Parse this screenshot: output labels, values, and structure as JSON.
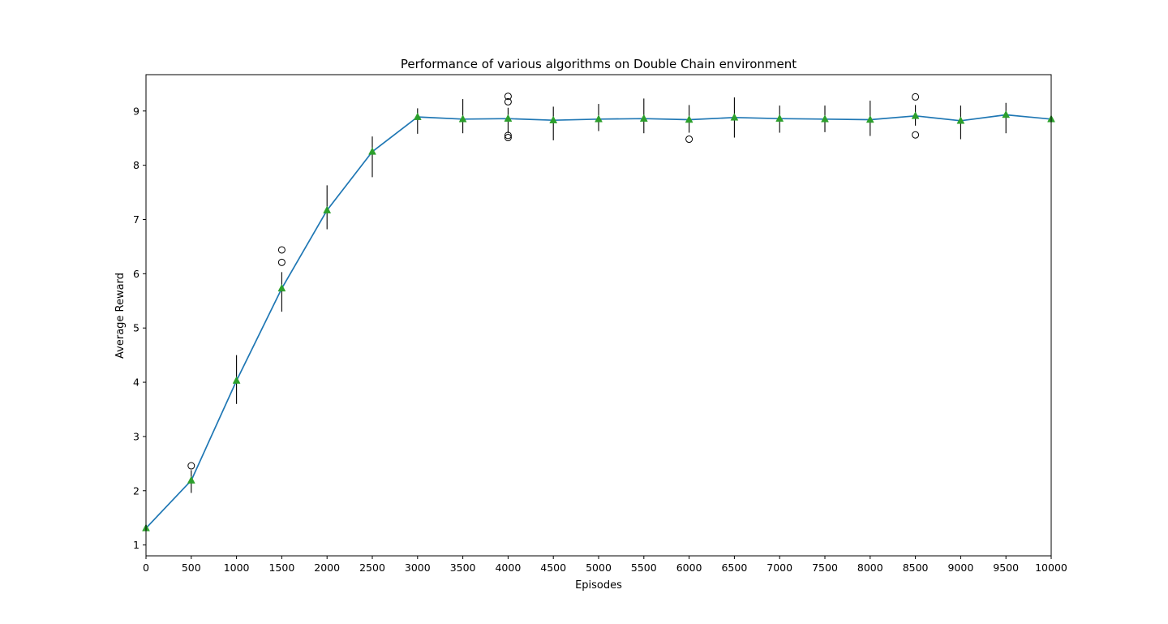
{
  "chart_data": {
    "type": "line",
    "title": "Performance of various algorithms on Double Chain environment",
    "xlabel": "Episodes",
    "ylabel": "Average Reward",
    "xlim": [
      0,
      10000
    ],
    "ylim": [
      0.8,
      9.67
    ],
    "xticks": [
      0,
      500,
      1000,
      1500,
      2000,
      2500,
      3000,
      3500,
      4000,
      4500,
      5000,
      5500,
      6000,
      6500,
      7000,
      7500,
      8000,
      8500,
      9000,
      9500,
      10000
    ],
    "yticks": [
      1,
      2,
      3,
      4,
      5,
      6,
      7,
      8,
      9
    ],
    "grid": false,
    "legend": "none",
    "series": [
      {
        "x": [
          0,
          500,
          1000,
          1500,
          2000,
          2500,
          3000,
          3500,
          4000,
          4500,
          5000,
          5500,
          6000,
          6500,
          7000,
          7500,
          8000,
          8500,
          9000,
          9500,
          10000
        ],
        "mean": [
          1.31,
          2.19,
          4.03,
          5.73,
          7.17,
          8.25,
          8.89,
          8.85,
          8.86,
          8.83,
          8.85,
          8.86,
          8.84,
          8.88,
          8.86,
          8.85,
          8.84,
          8.91,
          8.82,
          8.93,
          8.85
        ],
        "range_low": [
          1.31,
          1.96,
          3.6,
          5.3,
          6.82,
          7.78,
          8.58,
          8.59,
          8.59,
          8.46,
          8.63,
          8.59,
          8.6,
          8.51,
          8.6,
          8.61,
          8.54,
          8.73,
          8.48,
          8.59,
          8.78
        ],
        "range_high": [
          1.31,
          2.38,
          4.5,
          6.03,
          7.63,
          8.53,
          9.05,
          9.22,
          9.06,
          9.08,
          9.13,
          9.23,
          9.11,
          9.25,
          9.1,
          9.1,
          9.19,
          9.11,
          9.1,
          9.15,
          8.9
        ],
        "outliers": [
          [
            500,
            2.46
          ],
          [
            1500,
            6.44
          ],
          [
            1500,
            6.21
          ],
          [
            4000,
            9.27
          ],
          [
            4000,
            9.17
          ],
          [
            4000,
            8.55
          ],
          [
            4000,
            8.51
          ],
          [
            6000,
            8.48
          ],
          [
            8500,
            9.26
          ],
          [
            8500,
            8.56
          ]
        ]
      }
    ],
    "colors": {
      "line": "#1f77b4",
      "mean_marker": "#2ca02c",
      "whisker": "#000000",
      "outlier": "#000000"
    }
  }
}
